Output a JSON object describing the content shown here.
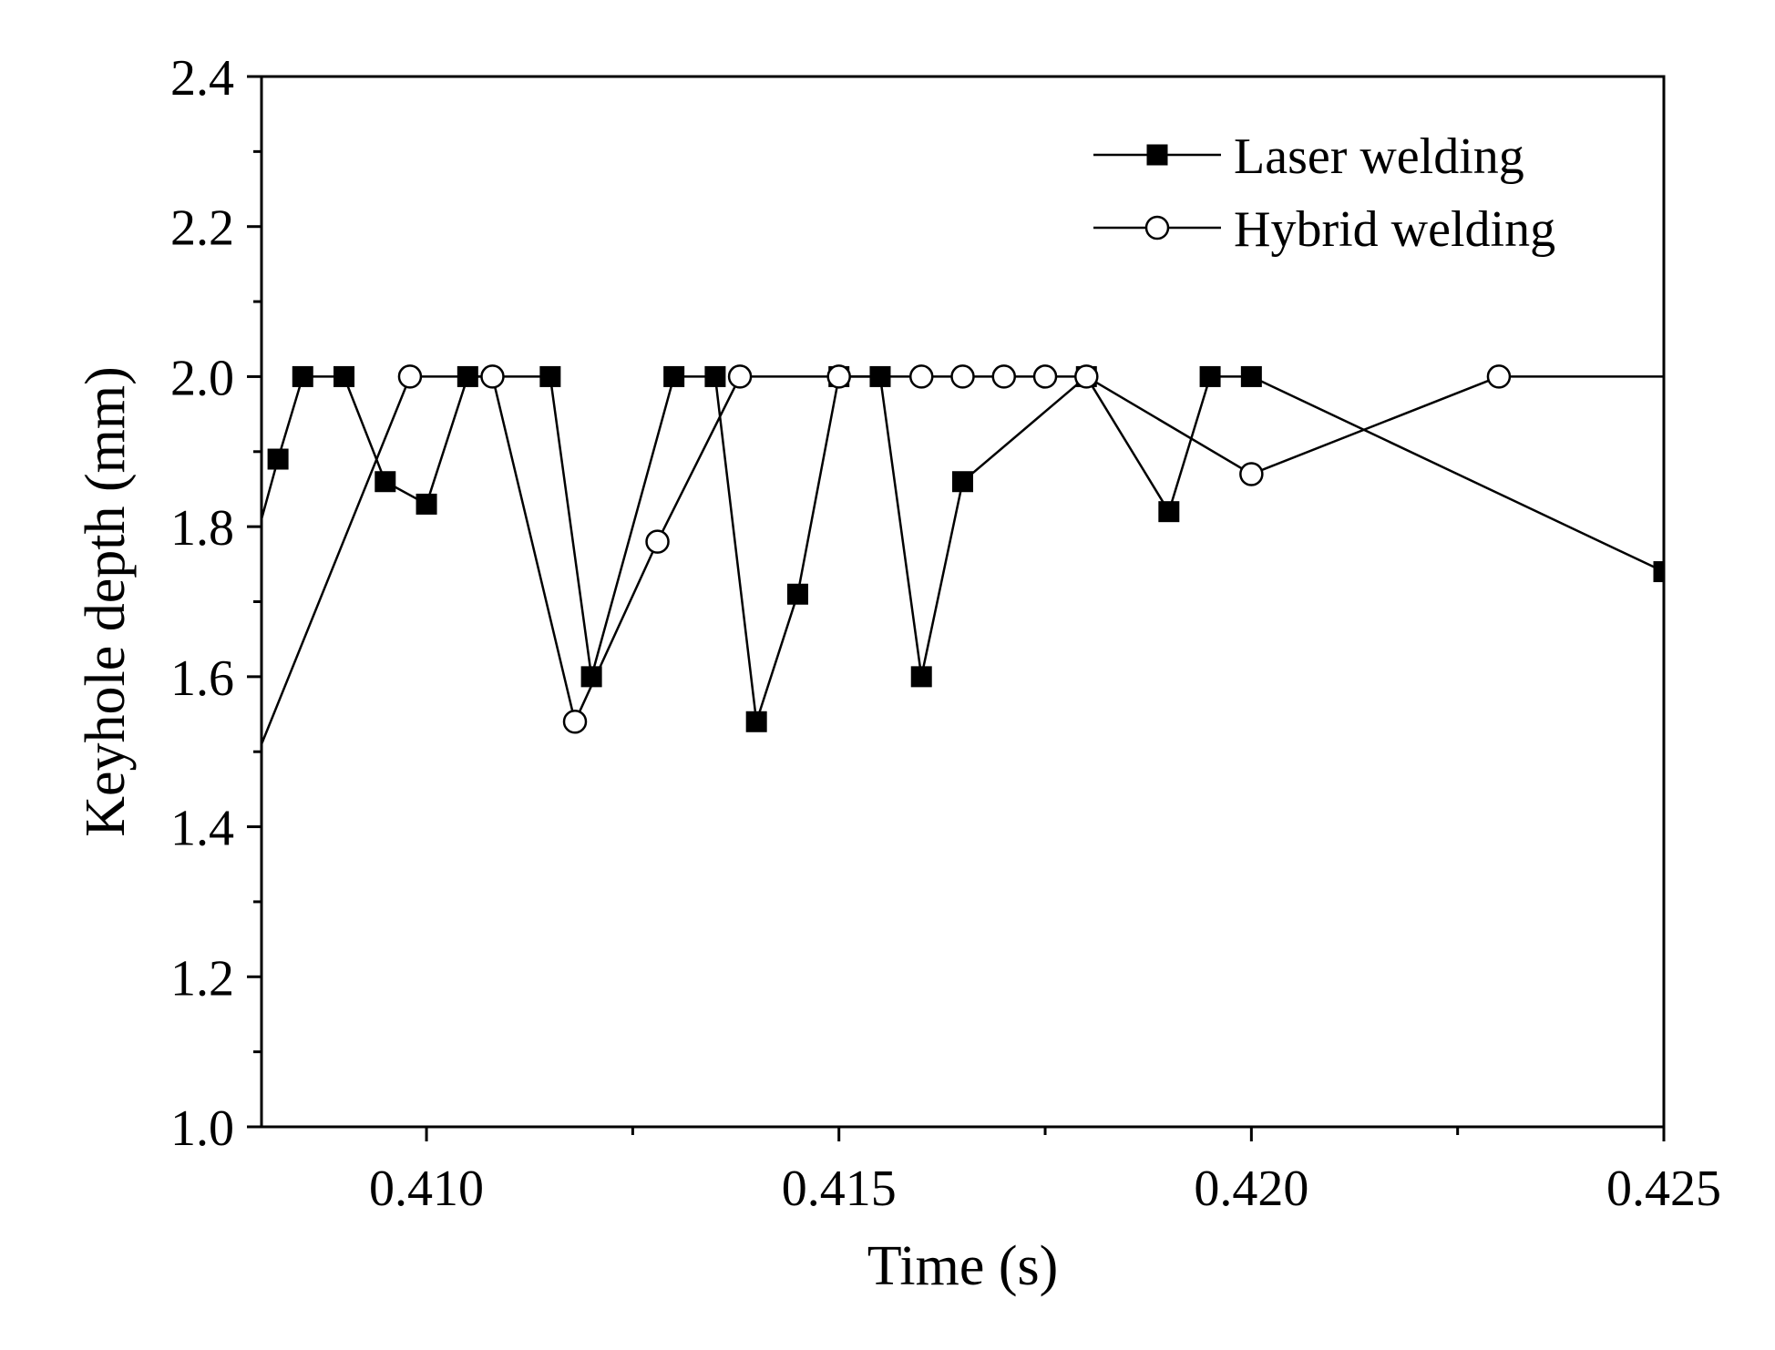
{
  "chart_data": {
    "type": "line",
    "title": "",
    "xlabel": "Time (s)",
    "ylabel": "Keyhole depth (mm)",
    "xlim": [
      0.408,
      0.425
    ],
    "ylim": [
      1.0,
      2.4
    ],
    "x_major_ticks": [
      0.41,
      0.415,
      0.42,
      0.425
    ],
    "x_tick_labels": [
      "0.410",
      "0.415",
      "0.420",
      "0.425"
    ],
    "x_minor_ticks": [
      0.4075,
      0.4125,
      0.4175,
      0.4225
    ],
    "y_major_ticks": [
      1.0,
      1.2,
      1.4,
      1.6,
      1.8,
      2.0,
      2.2,
      2.4
    ],
    "y_tick_labels": [
      "1.0",
      "1.2",
      "1.4",
      "1.6",
      "1.8",
      "2.0",
      "2.2",
      "2.4"
    ],
    "y_minor_ticks": [
      1.1,
      1.3,
      1.5,
      1.7,
      1.9,
      2.1,
      2.3
    ],
    "grid": false,
    "legend_position": "top-right",
    "series": [
      {
        "name": "Laser welding",
        "marker": "filled-square",
        "color": "#000000",
        "x": [
          0.4082,
          0.4085,
          0.409,
          0.4095,
          0.41,
          0.4105,
          0.4115,
          0.412,
          0.413,
          0.4135,
          0.414,
          0.4145,
          0.415,
          0.4155,
          0.416,
          0.4165,
          0.418,
          0.419,
          0.4195,
          0.42,
          0.425
        ],
        "y": [
          1.89,
          2.0,
          2.0,
          1.86,
          1.83,
          2.0,
          2.0,
          1.6,
          2.0,
          2.0,
          1.54,
          1.71,
          2.0,
          2.0,
          1.6,
          1.86,
          2.0,
          1.82,
          2.0,
          2.0,
          1.74
        ],
        "line_start": {
          "x": 0.408,
          "y": 1.81
        }
      },
      {
        "name": "Hybrid welding",
        "marker": "open-circle",
        "color": "#000000",
        "x": [
          0.4098,
          0.4108,
          0.4118,
          0.4128,
          0.4138,
          0.415,
          0.416,
          0.4165,
          0.417,
          0.4175,
          0.418,
          0.42,
          0.423
        ],
        "y": [
          2.0,
          2.0,
          1.54,
          1.78,
          2.0,
          2.0,
          2.0,
          2.0,
          2.0,
          2.0,
          2.0,
          1.87,
          2.0
        ],
        "line_start": {
          "x": 0.408,
          "y": 1.51
        },
        "line_end": {
          "x": 0.425,
          "y": 2.0
        }
      }
    ]
  }
}
